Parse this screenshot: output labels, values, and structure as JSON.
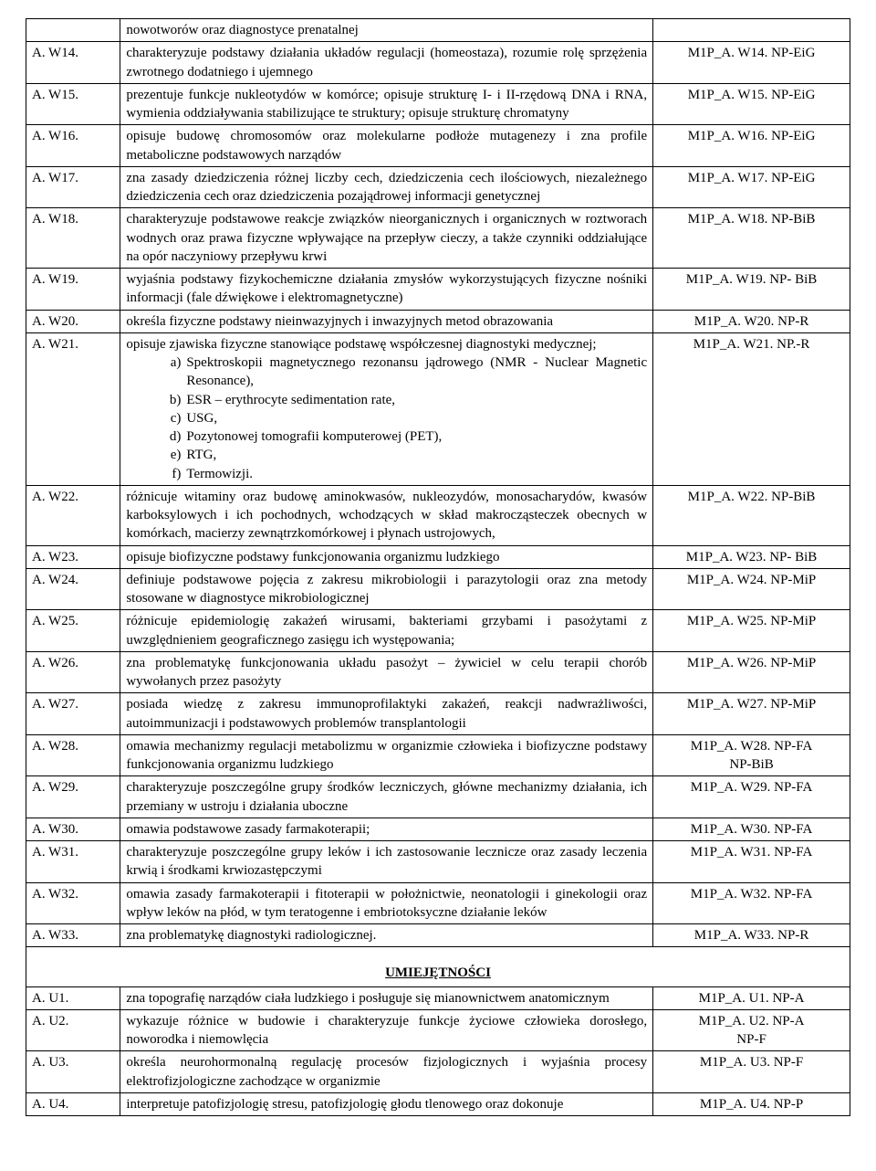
{
  "rows": [
    {
      "code": "",
      "desc": "nowotworów oraz diagnostyce prenatalnej",
      "ref": "",
      "plain": true
    },
    {
      "code": "A. W14.",
      "desc": "charakteryzuje podstawy działania układów regulacji (homeostaza), rozumie rolę sprzężenia zwrotnego dodatniego i ujemnego",
      "ref": "M1P_A. W14. NP-EiG"
    },
    {
      "code": "A. W15.",
      "desc": "prezentuje funkcje nukleotydów w komórce; opisuje strukturę I- i II-rzędową DNA i RNA, wymienia oddziaływania stabilizujące te struktury; opisuje strukturę chromatyny",
      "ref": "M1P_A. W15. NP-EiG"
    },
    {
      "code": "A. W16.",
      "desc": "opisuje budowę chromosomów oraz molekularne podłoże mutagenezy i zna profile metaboliczne podstawowych narządów",
      "ref": "M1P_A. W16. NP-EiG"
    },
    {
      "code": "A. W17.",
      "desc": "zna zasady dziedziczenia różnej liczby cech, dziedziczenia cech ilościowych, niezależnego dziedziczenia cech oraz dziedziczenia pozajądrowej informacji genetycznej",
      "ref": "M1P_A. W17. NP-EiG"
    },
    {
      "code": "A. W18.",
      "desc": "charakteryzuje podstawowe reakcje związków nieorganicznych i organicznych w roztworach wodnych oraz prawa fizyczne wpływające na przepływ cieczy, a także czynniki oddziałujące na opór naczyniowy przepływu krwi",
      "ref": "M1P_A. W18. NP-BiB"
    },
    {
      "code": "A. W19.",
      "desc": "wyjaśnia podstawy fizykochemiczne działania zmysłów wykorzystujących fizyczne nośniki informacji (fale dźwiękowe i elektromagnetyczne)",
      "ref": "M1P_A. W19. NP- BiB"
    },
    {
      "code": "A. W20.",
      "desc": "określa fizyczne podstawy nieinwazyjnych i inwazyjnych metod obrazowania",
      "ref": "M1P_A. W20. NP-R"
    },
    {
      "code": "A. W21.",
      "desc": "opisuje zjawiska fizyczne stanowiące podstawę współczesnej diagnostyki medycznej;",
      "ref": "M1P_A. W21. NP.-R",
      "sublist": [
        "Spektroskopii magnetycznego rezonansu jądrowego (NMR - Nuclear Magnetic Resonance),",
        "ESR – erythrocyte sedimentation rate,",
        "USG,",
        "Pozytonowej tomografii komputerowej (PET),",
        "RTG,",
        "Termowizji."
      ]
    },
    {
      "code": "A. W22.",
      "desc": "różnicuje witaminy oraz  budowę aminokwasów, nukleozydów, monosacharydów, kwasów karboksylowych i ich pochodnych, wchodzących w skład makrocząsteczek obecnych w komórkach, macierzy zewnątrzkomórkowej i płynach ustrojowych,",
      "ref": "M1P_A. W22. NP-BiB"
    },
    {
      "code": "A. W23.",
      "desc": "opisuje biofizyczne podstawy funkcjonowania organizmu ludzkiego",
      "ref": "M1P_A. W23. NP- BiB"
    },
    {
      "code": "A. W24.",
      "desc": "definiuje podstawowe pojęcia z zakresu mikrobiologii i parazytologii oraz zna metody stosowane w diagnostyce mikrobiologicznej",
      "ref": "M1P_A. W24. NP-MiP"
    },
    {
      "code": "A. W25.",
      "desc": "różnicuje epidemiologię zakażeń wirusami, bakteriami grzybami i pasożytami z uwzględnieniem geograficznego zasięgu ich występowania;",
      "ref": "M1P_A. W25. NP-MiP"
    },
    {
      "code": "A. W26.",
      "desc": "zna problematykę funkcjonowania układu pasożyt – żywiciel w celu terapii chorób wywołanych przez pasożyty",
      "ref": "M1P_A. W26. NP-MiP"
    },
    {
      "code": "A. W27.",
      "desc": "posiada wiedzę z zakresu immunoprofilaktyki zakażeń, reakcji nadwrażliwości, autoimmunizacji i podstawowych problemów transplantologii",
      "ref": "M1P_A. W27. NP-MiP"
    },
    {
      "code": "A. W28.",
      "desc": "omawia mechanizmy regulacji metabolizmu w organizmie człowieka i biofizyczne podstawy funkcjonowania organizmu ludzkiego",
      "ref": "M1P_A. W28. NP-FA",
      "ref2": "NP-BiB"
    },
    {
      "code": "A. W29.",
      "desc": "charakteryzuje poszczególne grupy środków leczniczych, główne mechanizmy działania, ich przemiany w ustroju i działania uboczne",
      "ref": "M1P_A. W29. NP-FA"
    },
    {
      "code": "A. W30.",
      "desc": "omawia podstawowe zasady farmakoterapii;",
      "ref": "M1P_A. W30. NP-FA"
    },
    {
      "code": "A. W31.",
      "desc": "charakteryzuje poszczególne grupy leków i ich zastosowanie lecznicze oraz zasady leczenia krwią i środkami krwiozastępczymi",
      "ref": "M1P_A. W31. NP-FA"
    },
    {
      "code": "A. W32.",
      "desc": "omawia zasady farmakoterapii i fitoterapii w położnictwie, neonatologii i ginekologii oraz wpływ leków na płód, w tym teratogenne i embriotoksyczne działanie leków",
      "ref": "M1P_A. W32. NP-FA"
    },
    {
      "code": "A. W33.",
      "desc": "zna problematykę  diagnostyki radiologicznej.",
      "ref": "M1P_A. W33. NP-R"
    }
  ],
  "sectionTitle": "UMIEJĘTNOŚCI",
  "rows2": [
    {
      "code": "A. U1.",
      "desc": "zna topografię narządów ciała ludzkiego i posługuje się mianownictwem anatomicznym",
      "ref": "M1P_A. U1. NP-A"
    },
    {
      "code": "A. U2.",
      "desc": "wykazuje różnice w budowie i charakteryzuje funkcje życiowe człowieka dorosłego, noworodka i niemowlęcia",
      "ref": "M1P_A. U2. NP-A",
      "ref2": "NP-F"
    },
    {
      "code": "A. U3.",
      "desc": "określa neurohormonalną regulację procesów fizjologicznych i wyjaśnia procesy elektrofizjologiczne zachodzące w organizmie",
      "ref": "M1P_A. U3. NP-F"
    },
    {
      "code": "A. U4.",
      "desc": "interpretuje patofizjologię stresu, patofizjologię głodu tlenowego oraz dokonuje",
      "ref": "M1P_A. U4. NP-P"
    }
  ],
  "markers": [
    "a)",
    "b)",
    "c)",
    "d)",
    "e)",
    "f)"
  ]
}
